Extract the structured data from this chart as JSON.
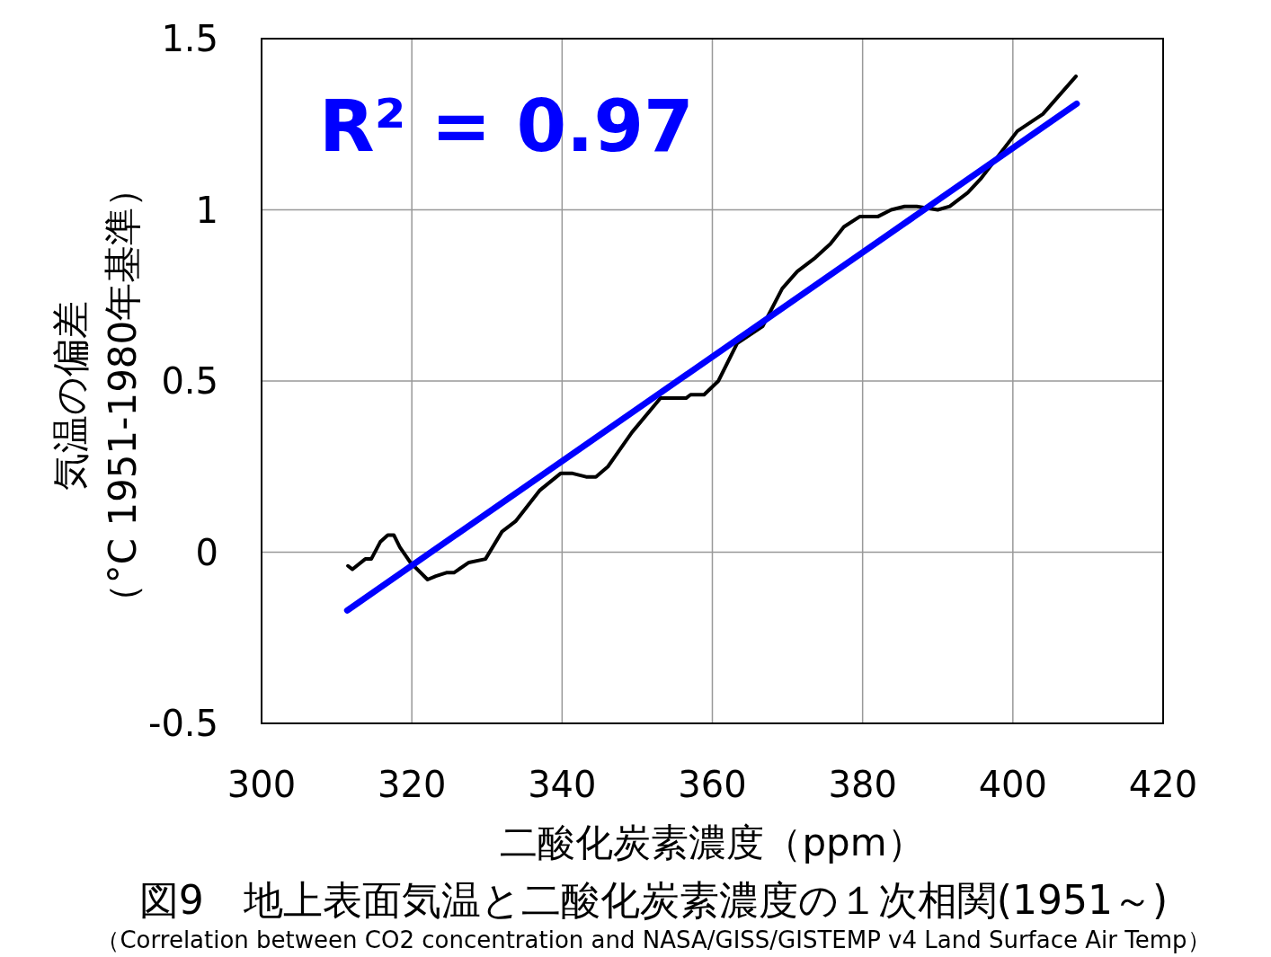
{
  "chart_data": {
    "type": "line",
    "title": "図9　地上表面気温と二酸化炭素濃度の１次相関(1951～)",
    "subtitle": "（Correlation between CO2 concentration and NASA/GISS/GISTEMP v4 Land Surface Air Temp）",
    "xlabel": "二酸化炭素濃度（ppm）",
    "ylabel": "気温の偏差（°C 1951-1980年基準）",
    "annotations": [
      "R² = 0.97"
    ],
    "series": [
      {
        "color": "#000000",
        "x": [
          311.5,
          312.1,
          313.8,
          314.6,
          315.8,
          316.8,
          317.6,
          318.4,
          319.8,
          322.1,
          323.2,
          324.6,
          325.6,
          327.6,
          329.8,
          332.0,
          333.8,
          337.0,
          339.8,
          341.4,
          343.2,
          344.5,
          346.1,
          349.3,
          353.1,
          356.5,
          357.1,
          358.9,
          360.8,
          363.3,
          366.7,
          369.3,
          371.3,
          373.7,
          375.7,
          377.5,
          379.6,
          382.0,
          383.8,
          385.6,
          387.2,
          390.0,
          391.6,
          394.0,
          395.7,
          400.6,
          404.0,
          408.4
        ],
        "values": [
          -0.04,
          -0.05,
          -0.02,
          -0.02,
          0.03,
          0.05,
          0.05,
          0.015,
          -0.03,
          -0.08,
          -0.07,
          -0.06,
          -0.06,
          -0.03,
          -0.02,
          0.06,
          0.09,
          0.18,
          0.23,
          0.23,
          0.22,
          0.22,
          0.25,
          0.35,
          0.45,
          0.45,
          0.46,
          0.46,
          0.5,
          0.61,
          0.66,
          0.77,
          0.82,
          0.86,
          0.9,
          0.95,
          0.98,
          0.98,
          1.0,
          1.01,
          1.01,
          1.0,
          1.01,
          1.05,
          1.09,
          1.23,
          1.28,
          1.39
        ]
      },
      {
        "type": "line",
        "color": "#0000ff",
        "x": [
          311.4,
          408.5
        ],
        "values": [
          -0.17,
          1.31
        ]
      }
    ],
    "xlim": [
      300,
      420
    ],
    "xticks": [
      300,
      320,
      340,
      360,
      380,
      400,
      420
    ],
    "ylim": [
      -0.5,
      1.5
    ],
    "yticks": [
      -0.5,
      0,
      0.5,
      1,
      1.5
    ],
    "grid": true
  }
}
